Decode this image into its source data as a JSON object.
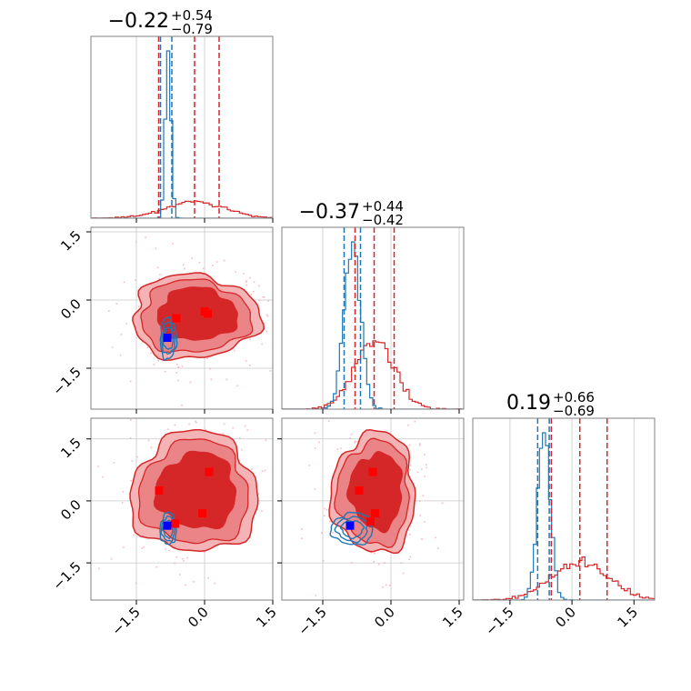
{
  "chart_data": {
    "type": "corner",
    "parameters": 3,
    "grid": true,
    "ticks": [
      -1.5,
      0.0,
      1.5
    ],
    "tick_labels": [
      "−1.5",
      "0.0",
      "1.5"
    ],
    "ranges": [
      [
        -2.5,
        1.5
      ],
      [
        -2.4,
        1.6
      ],
      [
        -2.4,
        2.0
      ]
    ],
    "colors": {
      "red": "#d62728",
      "red_light": "#f4b3b4",
      "red_mid": "#ea8486",
      "blue": "#1f77b4",
      "grid": "#c8c8c8",
      "marker_blue": "#0000ff",
      "marker_red": "#ff0000"
    },
    "titles": [
      {
        "main": "−0.22",
        "sup": "+0.54",
        "sub": "−0.79"
      },
      {
        "main": "−0.37",
        "sup": "+0.44",
        "sub": "−0.42"
      },
      {
        "main": "0.19",
        "sup": "+0.66",
        "sub": "−0.69"
      }
    ],
    "series": [
      {
        "color": "red",
        "centers": [
          -0.22,
          -0.37,
          0.19
        ],
        "sigmas": [
          0.65,
          0.43,
          0.68
        ],
        "quantile_lines": [
          [
            -1.01,
            0.32
          ],
          [
            -0.79,
            0.07
          ],
          [
            -0.5,
            0.85
          ]
        ],
        "markers": [
          {
            "x": -0.65,
            "y": -0.4
          },
          {
            "x": 0.0,
            "y": -0.27
          },
          {
            "x": 0.1,
            "y": -0.3
          }
        ]
      },
      {
        "color": "blue",
        "centers": [
          -0.8,
          -0.85,
          -0.68
        ],
        "sigmas": [
          0.06,
          0.18,
          0.15
        ],
        "quantile_lines": [
          [
            -0.97,
            -0.72
          ],
          [
            -1.03,
            -0.67
          ],
          [
            -0.83,
            -0.55
          ]
        ],
        "marker": {
          "x": -0.82,
          "y": -0.83
        }
      }
    ],
    "panel_markers": {
      "p10": {
        "red": [
          [
            -0.62,
            -0.4
          ],
          [
            0.0,
            -0.25
          ],
          [
            0.07,
            -0.3
          ]
        ],
        "blue": [
          -0.82,
          -0.83
        ]
      },
      "p20": {
        "red": [
          [
            -1.0,
            0.25
          ],
          [
            0.1,
            0.7
          ],
          [
            -0.65,
            -0.55
          ],
          [
            -0.05,
            -0.3
          ]
        ],
        "blue": [
          -0.82,
          -0.6
        ]
      },
      "p21": {
        "red": [
          [
            -0.4,
            0.7
          ],
          [
            -0.7,
            0.25
          ],
          [
            -0.35,
            -0.3
          ],
          [
            -0.45,
            -0.5
          ]
        ],
        "blue": [
          -0.9,
          -0.6
        ]
      }
    }
  }
}
